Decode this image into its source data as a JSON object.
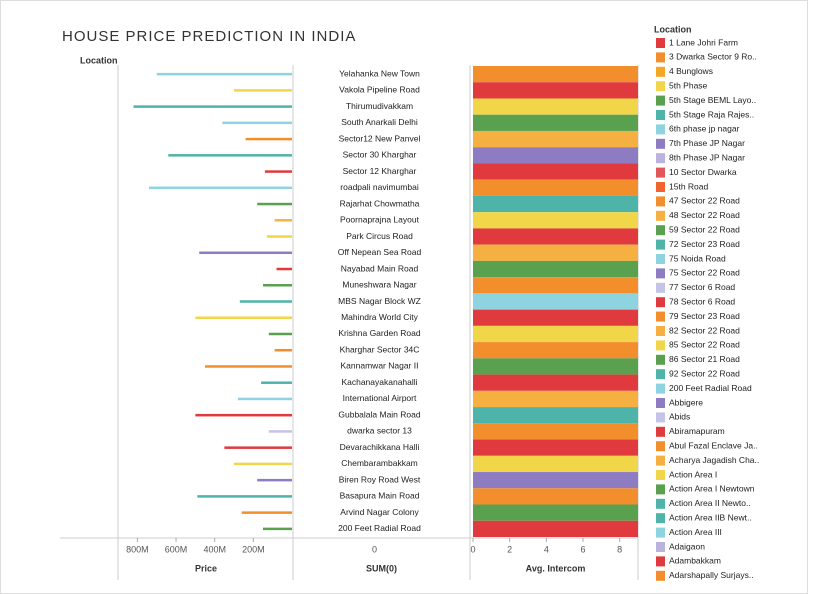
{
  "title": "HOUSE PRICE PREDICTION IN INDIA",
  "row_header": "Location",
  "chart_data": [
    {
      "type": "bar",
      "orientation": "horizontal",
      "reversed": true,
      "x_label": "Price",
      "xlim": [
        0,
        890000000
      ],
      "xticks": [
        {
          "value": 800000000,
          "label": "800M"
        },
        {
          "value": 600000000,
          "label": "600M"
        },
        {
          "value": 400000000,
          "label": "400M"
        },
        {
          "value": 200000000,
          "label": "200M"
        }
      ],
      "values": [
        700000000,
        300000000,
        820000000,
        360000000,
        240000000,
        640000000,
        140000000,
        740000000,
        180000000,
        90000000,
        130000000,
        480000000,
        80000000,
        150000000,
        270000000,
        500000000,
        120000000,
        90000000,
        450000000,
        160000000,
        280000000,
        500000000,
        120000000,
        350000000,
        300000000,
        180000000,
        490000000,
        260000000,
        150000000
      ],
      "colors": [
        "#8dd3e0",
        "#f2d649",
        "#4eb3a8",
        "#8dd3e0",
        "#f28e2b",
        "#4eb3a8",
        "#e03a3e",
        "#8dd3e0",
        "#59a14f",
        "#f5b041",
        "#f2d649",
        "#8e7cc3",
        "#e03a3e",
        "#59a14f",
        "#4eb3a8",
        "#f2d649",
        "#59a14f",
        "#f28e2b",
        "#f28e2b",
        "#4eb3a8",
        "#8dd3e0",
        "#e03a3e",
        "#c5c3e6",
        "#e03a3e",
        "#f2d649",
        "#8e7cc3",
        "#4eb3a8",
        "#f28e2b",
        "#59a14f"
      ]
    },
    {
      "type": "axis",
      "x_label": "SUM(0)",
      "xticks": [
        0
      ],
      "categories": [
        "Yelahanka New Town",
        "Vakola Pipeline Road",
        "Thirumudivakkam",
        "South Anarkali Delhi",
        "Sector12 New Panvel",
        "Sector 30 Kharghar",
        "Sector 12 Kharghar",
        "roadpali navimumbai",
        "Rajarhat Chowmatha",
        "Poornaprajna Layout",
        "Park Circus Road",
        "Off Nepean Sea Road",
        "Nayabad Main Road",
        "Muneshwara Nagar",
        "MBS Nagar Block WZ",
        "Mahindra World City",
        "Krishna Garden Road",
        "Kharghar Sector 34C",
        "Kannamwar Nagar II",
        "Kachanayakanahalli",
        "International Airport",
        "Gubbalala Main Road",
        "dwarka sector 13",
        "Devarachikkana Halli",
        "Chembarambakkam",
        "Biren Roy Road West",
        "Basapura Main Road",
        "Arvind Nagar Colony",
        "200 Feet Radial Road"
      ]
    },
    {
      "type": "bar",
      "orientation": "horizontal",
      "x_label": "Avg. Intercom",
      "xlim": [
        0,
        9
      ],
      "xticks": [
        0,
        2,
        4,
        6,
        8
      ],
      "values": [
        9,
        9,
        9,
        9,
        9,
        9,
        9,
        9,
        9,
        9,
        9,
        9,
        9,
        9,
        9,
        9,
        9,
        9,
        9,
        9,
        9,
        9,
        9,
        9,
        9,
        9,
        9,
        9,
        9
      ],
      "colors": [
        "#f28e2b",
        "#e03a3e",
        "#f2d649",
        "#59a14f",
        "#f5b041",
        "#8e7cc3",
        "#e03a3e",
        "#f28e2b",
        "#4eb3a8",
        "#f2d649",
        "#e03a3e",
        "#f5b041",
        "#59a14f",
        "#f28e2b",
        "#8dd3e0",
        "#e03a3e",
        "#f2d649",
        "#f28e2b",
        "#59a14f",
        "#e03a3e",
        "#f5b041",
        "#4eb3a8",
        "#f28e2b",
        "#e03a3e",
        "#f2d649",
        "#8e7cc3",
        "#f28e2b",
        "#59a14f",
        "#e03a3e"
      ]
    }
  ],
  "legend": {
    "title": "Location",
    "items": [
      {
        "name": "1 Lane Johri Farm",
        "color": "#e03a3e"
      },
      {
        "name": "3 Dwarka Sector 9 Ro..",
        "color": "#f28e2b"
      },
      {
        "name": "4 Bunglows",
        "color": "#f5a623"
      },
      {
        "name": "5th Phase",
        "color": "#f2d649"
      },
      {
        "name": "5th Stage BEML Layo..",
        "color": "#59a14f"
      },
      {
        "name": "5th Stage Raja Rajes..",
        "color": "#4eb3a8"
      },
      {
        "name": "6th phase jp nagar",
        "color": "#8dd3e0"
      },
      {
        "name": "7th Phase JP Nagar",
        "color": "#8e7cc3"
      },
      {
        "name": "8th Phase JP Nagar",
        "color": "#b9b3dd"
      },
      {
        "name": "10 Sector Dwarka",
        "color": "#e15759"
      },
      {
        "name": "15th Road",
        "color": "#f0652f"
      },
      {
        "name": "47 Sector 22 Road",
        "color": "#f28e2b"
      },
      {
        "name": "48 Sector 22 Road",
        "color": "#f5b041"
      },
      {
        "name": "59 Sector 22 Road",
        "color": "#59a14f"
      },
      {
        "name": "72 Sector 23 Road",
        "color": "#4eb3a8"
      },
      {
        "name": "75 Noida Road",
        "color": "#8dd3e0"
      },
      {
        "name": "75 Sector 22 Road",
        "color": "#8e7cc3"
      },
      {
        "name": "77 Sector 6 Road",
        "color": "#c5c3e6"
      },
      {
        "name": "78 Sector 6 Road",
        "color": "#e03a3e"
      },
      {
        "name": "79 Sector 23 Road",
        "color": "#f28e2b"
      },
      {
        "name": "82 Sector 22 Road",
        "color": "#f5b041"
      },
      {
        "name": "85 Sector 22 Road",
        "color": "#f2d649"
      },
      {
        "name": "86 Sector 21 Road",
        "color": "#59a14f"
      },
      {
        "name": "92 Sector 22 Road",
        "color": "#4eb3a8"
      },
      {
        "name": "200 Feet Radial Road",
        "color": "#8dd3e0"
      },
      {
        "name": "Abbigere",
        "color": "#8e7cc3"
      },
      {
        "name": "Abids",
        "color": "#c5c3e6"
      },
      {
        "name": "Abiramapuram",
        "color": "#e03a3e"
      },
      {
        "name": "Abul Fazal Enclave Ja..",
        "color": "#f28e2b"
      },
      {
        "name": "Acharya Jagadish Cha..",
        "color": "#f5b041"
      },
      {
        "name": "Action Area I",
        "color": "#f2d649"
      },
      {
        "name": "Action Area I Newtown",
        "color": "#59a14f"
      },
      {
        "name": "Action Area II Newto..",
        "color": "#4eb3a8"
      },
      {
        "name": "Action Area IIB Newt..",
        "color": "#4eb3a8"
      },
      {
        "name": "Action Area III",
        "color": "#8dd3e0"
      },
      {
        "name": "Adaigaon",
        "color": "#b9b3dd"
      },
      {
        "name": "Adambakkam",
        "color": "#e03a3e"
      },
      {
        "name": "Adarshapally Surjays..",
        "color": "#f28e2b"
      }
    ]
  }
}
